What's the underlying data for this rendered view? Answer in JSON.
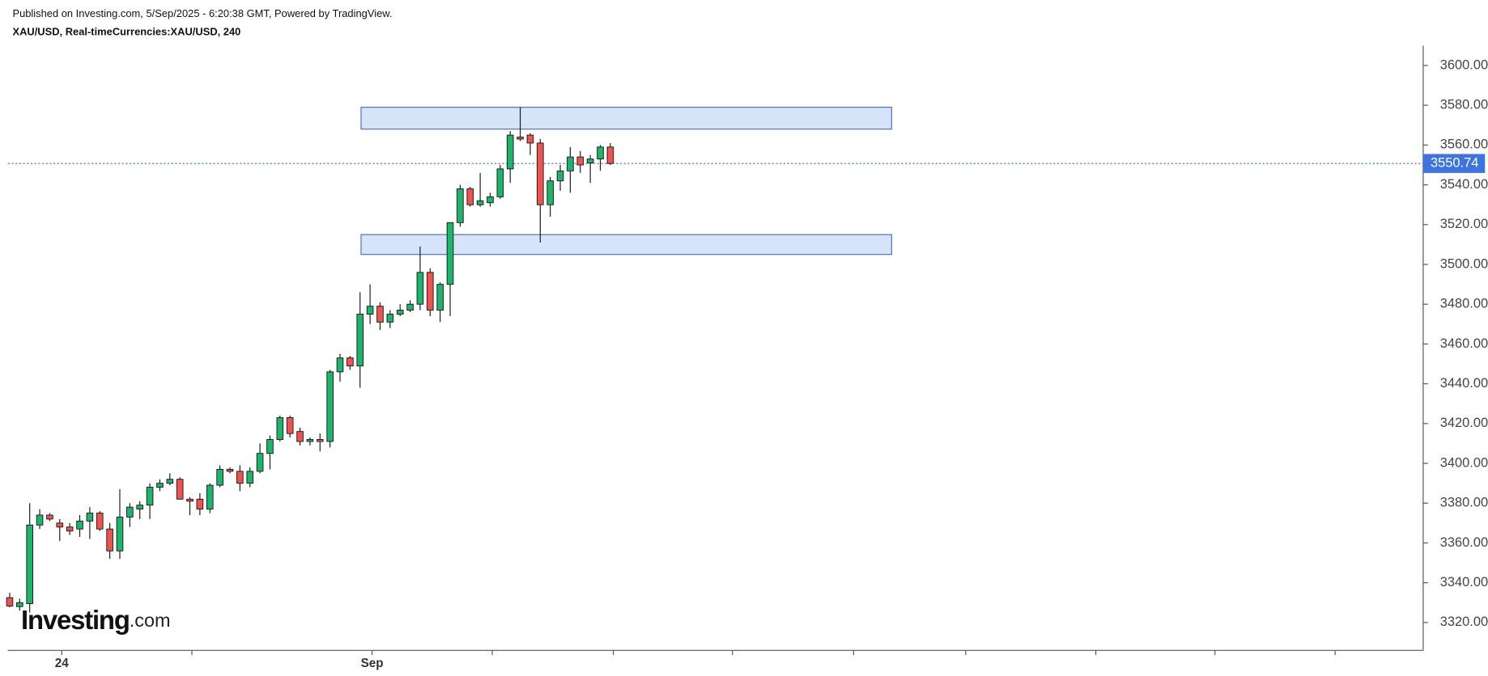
{
  "header": {
    "published": "Published on Investing.com, 5/Sep/2025 - 6:20:38 GMT, Powered by TradingView.",
    "symbol": "XAU/USD, Real-timeCurrencies:XAU/USD, 240"
  },
  "logo": {
    "name": "Investing",
    "suffix": ".com"
  },
  "chart_data": {
    "type": "candlestick",
    "up_color": "#1db56b",
    "down_color": "#ee5350",
    "outline_color": "#1a1a1a",
    "open": [
      3332.5,
      3328,
      3329.5,
      3369,
      3374,
      3370,
      3368,
      3367,
      3371,
      3375,
      3367,
      3356,
      3373,
      3377,
      3379,
      3388,
      3390,
      3392,
      3382,
      3382,
      3377,
      3389,
      3397,
      3396,
      3390,
      3396,
      3405,
      3412,
      3423,
      3416,
      3411,
      3412,
      3411,
      3446,
      3453,
      3449,
      3475,
      3479,
      3471,
      3475,
      3477,
      3480,
      3496,
      3477,
      3490,
      3521,
      3538,
      3530,
      3531,
      3534,
      3548,
      3564,
      3565,
      3561,
      3530,
      3542,
      3547,
      3554,
      3551,
      3553,
      3559
    ],
    "high": [
      3335,
      3332,
      3380,
      3377,
      3375,
      3372,
      3370,
      3374,
      3378,
      3376,
      3370,
      3387,
      3380,
      3381,
      3390,
      3392,
      3395,
      3393,
      3383,
      3385,
      3390,
      3399,
      3398,
      3399,
      3398,
      3410,
      3414,
      3424,
      3424,
      3418,
      3413,
      3415,
      3447,
      3455,
      3454,
      3486,
      3490,
      3481,
      3477,
      3480,
      3482,
      3509,
      3498,
      3491,
      3521,
      3540,
      3539,
      3546,
      3536,
      3550,
      3567,
      3579,
      3566,
      3563,
      3544,
      3550,
      3559,
      3557,
      3555,
      3560,
      3561
    ],
    "low": [
      3327.7,
      3326,
      3325,
      3367,
      3371,
      3361,
      3364,
      3363,
      3362,
      3366,
      3352,
      3352,
      3368,
      3372,
      3372,
      3386,
      3389,
      3382,
      3374,
      3374,
      3375,
      3388,
      3395,
      3386,
      3388,
      3395,
      3397,
      3411,
      3413,
      3409,
      3409,
      3406,
      3408,
      3441,
      3447,
      3438,
      3470,
      3467,
      3468,
      3474,
      3476,
      3477,
      3474,
      3471,
      3474,
      3519,
      3529,
      3529,
      3529,
      3533,
      3541,
      3562,
      3555,
      3511,
      3524,
      3537,
      3536,
      3546,
      3541,
      3547,
      3550
    ],
    "close": [
      3328.3,
      3330,
      3369,
      3374,
      3372,
      3368,
      3366,
      3371,
      3375,
      3367,
      3356,
      3373,
      3378,
      3379,
      3388,
      3390,
      3392,
      3382,
      3381,
      3377,
      3389,
      3397,
      3396,
      3390,
      3396,
      3405,
      3412,
      3423,
      3415,
      3411,
      3412,
      3411,
      3446,
      3453,
      3449,
      3475,
      3479,
      3471,
      3475,
      3477,
      3480,
      3496,
      3477,
      3490,
      3521,
      3538,
      3530,
      3532,
      3534,
      3548,
      3565,
      3563,
      3561,
      3530,
      3542,
      3547,
      3554,
      3550,
      3553,
      3559,
      3550.74
    ],
    "last_price": {
      "value": 3550.74,
      "label": "3550.74",
      "color": "#3d74e0"
    },
    "zones": [
      {
        "x": [
          35.1,
          88.1
        ],
        "y": [
          3568,
          3579
        ],
        "color": "#d6e4fa",
        "border": "#4e6fc9"
      },
      {
        "x": [
          35.1,
          88.1
        ],
        "y": [
          3505,
          3515
        ],
        "color": "#d6e4fa",
        "border": "#4e6fc9"
      }
    ],
    "xlim": [
      -0.19,
      141.2
    ],
    "xticks": [
      {
        "value": 5.2,
        "label": "24"
      },
      {
        "value": 18.2,
        "label": null
      },
      {
        "value": 36.2,
        "label": "Sep"
      },
      {
        "value": 48.2,
        "label": null
      },
      {
        "value": 60.3,
        "label": null
      },
      {
        "value": 72.2,
        "label": null
      },
      {
        "value": 84.3,
        "label": null
      },
      {
        "value": 95.5,
        "label": null
      },
      {
        "value": 108.5,
        "label": null
      },
      {
        "value": 120.4,
        "label": null
      },
      {
        "value": 132.4,
        "label": null
      }
    ],
    "ylim": [
      3306,
      3610
    ],
    "yticks": [
      {
        "value": 3320,
        "label": "3320.00"
      },
      {
        "value": 3340,
        "label": "3340.00"
      },
      {
        "value": 3360,
        "label": "3360.00"
      },
      {
        "value": 3380,
        "label": "3380.00"
      },
      {
        "value": 3400,
        "label": "3400.00"
      },
      {
        "value": 3420,
        "label": "3420.00"
      },
      {
        "value": 3440,
        "label": "3440.00"
      },
      {
        "value": 3460,
        "label": "3460.00"
      },
      {
        "value": 3480,
        "label": "3480.00"
      },
      {
        "value": 3500,
        "label": "3500.00"
      },
      {
        "value": 3520,
        "label": "3520.00"
      },
      {
        "value": 3540,
        "label": "3540.00"
      },
      {
        "value": 3560,
        "label": "3560.00"
      },
      {
        "value": 3580,
        "label": "3580.00"
      },
      {
        "value": 3600,
        "label": "3600.00"
      }
    ]
  }
}
